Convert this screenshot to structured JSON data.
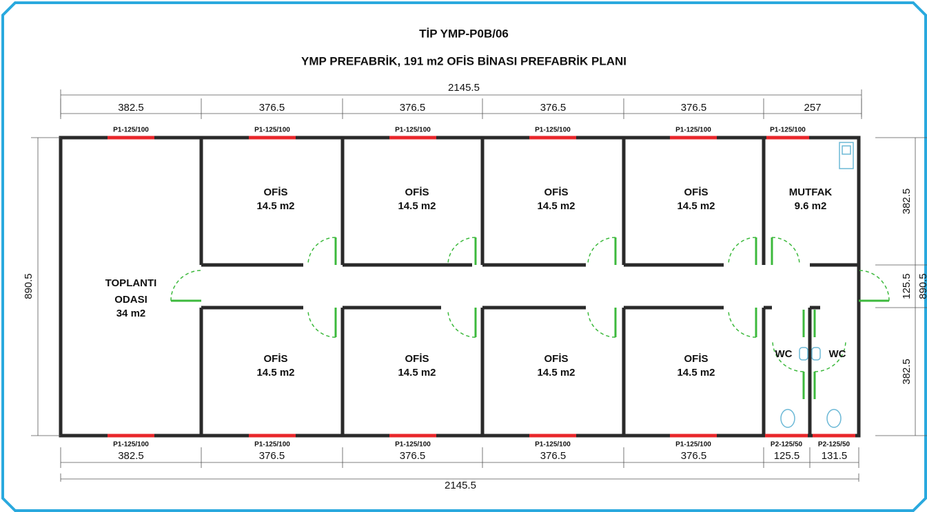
{
  "title": "TİP YMP-P0B/06",
  "subtitle": "YMP PREFABRİK, 191 m2 OFİS BİNASI PREFABRİK  PLANI",
  "dimensions": {
    "top_total": "2145.5",
    "top": [
      "382.5",
      "376.5",
      "376.5",
      "376.5",
      "376.5",
      "257"
    ],
    "bottom": [
      "382.5",
      "376.5",
      "376.5",
      "376.5",
      "376.5",
      "125.5",
      "131.5"
    ],
    "bottom_total": "2145.5",
    "left": "890.5",
    "right": [
      "382.5",
      "125.5",
      "382.5"
    ],
    "right_total": "890.5"
  },
  "windows": {
    "top": [
      "P1-125/100",
      "P1-125/100",
      "P1-125/100",
      "P1-125/100",
      "P1-125/100",
      "P1-125/100"
    ],
    "bottom": [
      "P1-125/100",
      "P1-125/100",
      "P1-125/100",
      "P1-125/100",
      "P1-125/100",
      "P2-125/50",
      "P2-125/50"
    ]
  },
  "rooms": [
    {
      "name": [
        "TOPLANTI",
        "ODASI"
      ],
      "area": "34 m2"
    },
    {
      "name": [
        "OFİS"
      ],
      "area": "14.5 m2"
    },
    {
      "name": [
        "OFİS"
      ],
      "area": "14.5 m2"
    },
    {
      "name": [
        "OFİS"
      ],
      "area": "14.5 m2"
    },
    {
      "name": [
        "OFİS"
      ],
      "area": "14.5 m2"
    },
    {
      "name": [
        "MUTFAK"
      ],
      "area": "9.6 m2"
    },
    {
      "name": [
        "OFİS"
      ],
      "area": "14.5 m2"
    },
    {
      "name": [
        "OFİS"
      ],
      "area": "14.5 m2"
    },
    {
      "name": [
        "OFİS"
      ],
      "area": "14.5 m2"
    },
    {
      "name": [
        "OFİS"
      ],
      "area": "14.5 m2"
    },
    {
      "name": [
        "WC"
      ]
    },
    {
      "name": [
        "WC"
      ]
    }
  ]
}
